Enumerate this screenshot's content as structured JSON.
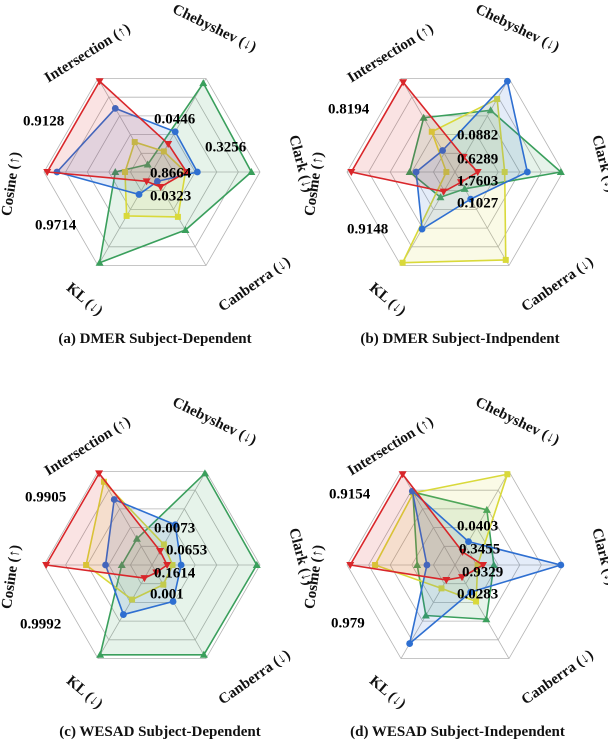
{
  "figure": {
    "colors": {
      "green": "#3a9f5c",
      "blue": "#2e6fd1",
      "yellow": "#d9d93a",
      "red": "#d9262a",
      "grid": "#b4b4b4"
    },
    "axis_order": [
      "Chebyshev (↓)",
      "Clark (↓)",
      "Canberra (↓)",
      "KL (↓)",
      "Cosine (↑)",
      "Intersection (↑)"
    ]
  },
  "chart_data": [
    {
      "type": "radar",
      "caption": "(a) DMER Subject-Dependent",
      "axes": [
        "Chebyshev (↓)",
        "Clark (↓)",
        "Canberra (↓)",
        "KL (↓)",
        "Cosine (↑)",
        "Intersection (↑)"
      ],
      "series": [
        {
          "color": "green",
          "values": [
            0.95,
            0.92,
            0.62,
            0.97,
            0.34,
            0.08
          ]
        },
        {
          "color": "blue",
          "values": [
            0.43,
            0.42,
            0.1,
            0.24,
            0.88,
            0.68
          ]
        },
        {
          "color": "yellow",
          "values": [
            0.22,
            0.31,
            0.48,
            0.47,
            0.25,
            0.32
          ]
        },
        {
          "color": "red",
          "values": [
            0.3,
            0.32,
            0.16,
            0.1,
            0.97,
            0.97
          ]
        }
      ],
      "labels": [
        "0.9128",
        "0.0446",
        "0.3256",
        "0.8664",
        "0.0323",
        "0.9714"
      ]
    },
    {
      "type": "radar",
      "caption": "(b) DMER Subject-Indpendent",
      "axes": [
        "Chebyshev (↓)",
        "Clark (↓)",
        "Canberra (↓)",
        "KL (↓)",
        "Cosine (↑)",
        "Intersection (↑)"
      ],
      "series": [
        {
          "color": "green",
          "values": [
            0.66,
            0.98,
            0.18,
            0.27,
            0.42,
            0.58
          ]
        },
        {
          "color": "blue",
          "values": [
            0.97,
            0.67,
            0.29,
            0.61,
            0.36,
            0.23
          ]
        },
        {
          "color": "yellow",
          "values": [
            0.78,
            0.46,
            0.94,
            0.97,
            0.08,
            0.43
          ]
        },
        {
          "color": "red",
          "values": [
            0.16,
            0.21,
            0.11,
            0.21,
            0.96,
            0.96
          ]
        }
      ],
      "labels": [
        "0.8194",
        "0.0882",
        "0.6289",
        "1.7603",
        "0.1027",
        "0.9148"
      ]
    },
    {
      "type": "radar",
      "caption": "(c) WESAD Subject-Dependent",
      "axes": [
        "Chebyshev (↓)",
        "Clark (↓)",
        "Canberra (↓)",
        "KL (↓)",
        "Cosine (↑)",
        "Intersection (↑)"
      ],
      "series": [
        {
          "color": "green",
          "values": [
            0.98,
            0.97,
            0.96,
            0.96,
            0.28,
            0.28
          ]
        },
        {
          "color": "blue",
          "values": [
            0.43,
            0.27,
            0.39,
            0.53,
            0.43,
            0.7
          ]
        },
        {
          "color": "yellow",
          "values": [
            0.22,
            0.19,
            0.21,
            0.37,
            0.61,
            0.89
          ]
        },
        {
          "color": "red",
          "values": [
            0.15,
            0.14,
            0.08,
            0.14,
            0.98,
            0.98
          ]
        }
      ],
      "labels": [
        "0.9905",
        "0.0073",
        "0.0653",
        "0.1614",
        "0.001",
        "0.9992"
      ]
    },
    {
      "type": "radar",
      "caption": "(d) WESAD Subject-Independent",
      "axes": [
        "Chebyshev (↓)",
        "Clark (↓)",
        "Canberra (↓)",
        "KL (↓)",
        "Cosine (↑)",
        "Intersection (↑)"
      ],
      "series": [
        {
          "color": "green",
          "values": [
            0.59,
            0.36,
            0.58,
            0.54,
            0.35,
            0.78
          ]
        },
        {
          "color": "blue",
          "values": [
            0.25,
            0.98,
            0.29,
            0.84,
            0.26,
            0.79
          ]
        },
        {
          "color": "yellow",
          "values": [
            0.97,
            0.21,
            0.39,
            0.25,
            0.74,
            0.77
          ]
        },
        {
          "color": "red",
          "values": [
            0.14,
            0.26,
            0.13,
            0.16,
            0.97,
            0.97
          ]
        }
      ],
      "labels": [
        "0.9154",
        "0.0403",
        "0.3455",
        "0.9329",
        "0.0283",
        "0.979"
      ]
    }
  ]
}
